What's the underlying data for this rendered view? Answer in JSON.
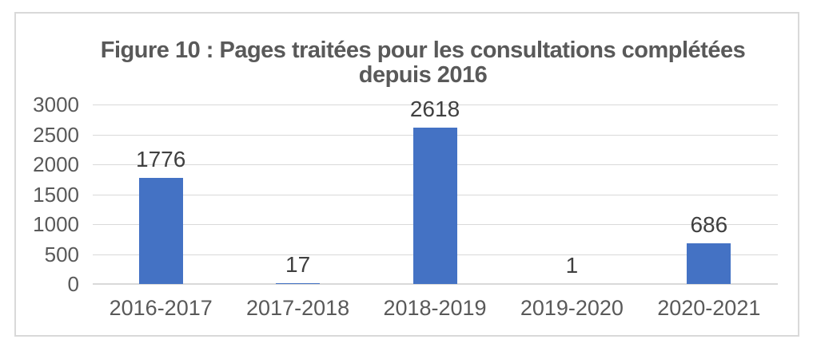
{
  "chart": {
    "title_line1": "Figure 10 : Pages traitées pour les consultations complétées",
    "title_line2": "depuis 2016"
  },
  "chart_data": {
    "type": "bar",
    "title": "Figure 10 : Pages traitées pour les consultations complétées depuis 2016",
    "categories": [
      "2016-2017",
      "2017-2018",
      "2018-2019",
      "2019-2020",
      "2020-2021"
    ],
    "values": [
      1776,
      17,
      2618,
      1,
      686
    ],
    "data_labels": [
      "1776",
      "17",
      "2618",
      "1",
      "686"
    ],
    "xlabel": "",
    "ylabel": "",
    "ylim": [
      0,
      3000
    ],
    "yticks": [
      0,
      500,
      1000,
      1500,
      2000,
      2500,
      3000
    ],
    "grid": "horizontal",
    "legend": "none",
    "colors": {
      "bar": "#4472c4",
      "grid": "#d9d9d9",
      "frame_border": "#d9d9d9",
      "title_text": "#595959",
      "axis_text": "#595959",
      "data_label_text": "#404040",
      "background": "#ffffff"
    }
  }
}
